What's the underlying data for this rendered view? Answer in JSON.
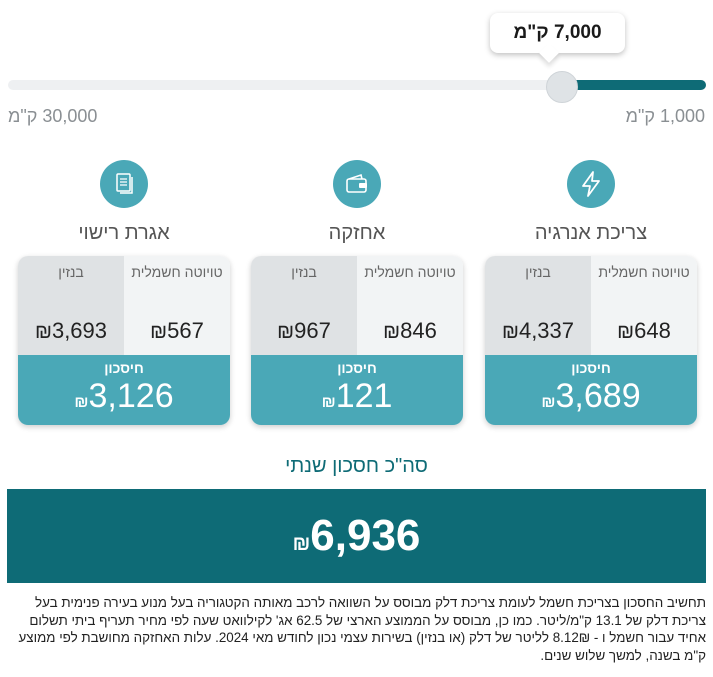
{
  "slider": {
    "value_label": "7,000 ק\"מ",
    "value_km": 7000,
    "min_label": "1,000 ק\"מ",
    "max_label": "30,000 ק\"מ",
    "min_km": 1000,
    "max_km": 30000
  },
  "currency": "₪",
  "categories": [
    {
      "title": "צריכת אנרגיה",
      "icon": "lightning-icon",
      "electric_label": "טויוטה חשמלית",
      "gas_label": "בנזין",
      "electric_value": "648",
      "gas_value": "4,337",
      "savings_label": "חיסכון",
      "savings_value": "3,689"
    },
    {
      "title": "אחזקה",
      "icon": "wallet-icon",
      "electric_label": "טויוטה חשמלית",
      "gas_label": "בנזין",
      "electric_value": "846",
      "gas_value": "967",
      "savings_label": "חיסכון",
      "savings_value": "121"
    },
    {
      "title": "אגרת רישוי",
      "icon": "document-icon",
      "electric_label": "טויוטה חשמלית",
      "gas_label": "בנזין",
      "electric_value": "567",
      "gas_value": "3,693",
      "savings_label": "חיסכון",
      "savings_value": "3,126"
    }
  ],
  "total": {
    "title": "סה\"כ חסכון שנתי",
    "value": "6,936"
  },
  "disclaimer": "תחשיב החסכון בצריכת חשמל לעומת צריכת דלק מבוסס על השוואה לרכב מאותה הקטגוריה בעל מנוע בעירה פנימית בעל צריכת דלק של 13.1 ק\"מ/ליטר. כמו כן, מבוסס על הממוצע הארצי של 62.5 אג' לקילוואט שעה לפי מחיר תעריף ביתי תשלום אחיד עבור חשמל ו - 8.12₪ לליטר של דלק (או בנזין) בשירות עצמי נכון לחודש מאי 2024. עלות האחזקה מחושבת לפי ממוצע ק\"מ בשנה, למשך שלוש שנים.",
  "colors": {
    "primary": "#0e6b76",
    "accent": "#4aa8b7",
    "electric_col": "#f2f4f5",
    "gas_col": "#dfe2e4"
  }
}
